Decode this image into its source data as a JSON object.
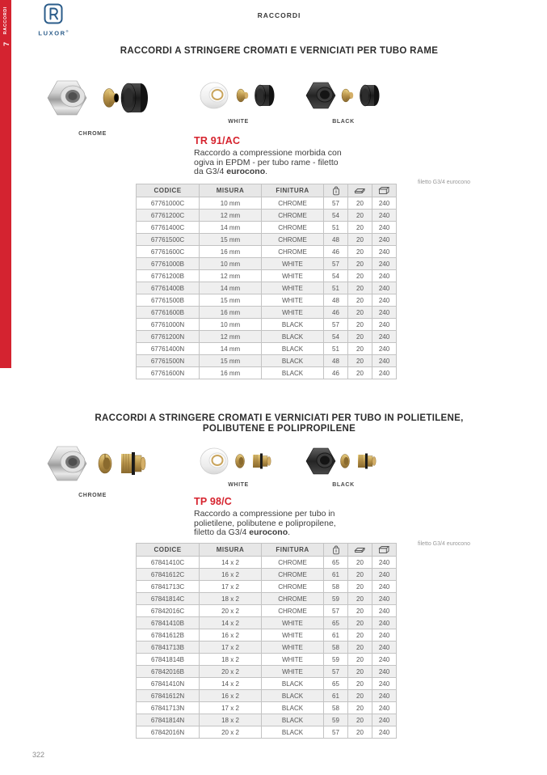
{
  "brand": {
    "name": "LUXOR",
    "registered": "®",
    "color": "#2b5c8a"
  },
  "sidebar": {
    "chapter_number": "7",
    "chapter_label": "RACCORDI",
    "color": "#d42330"
  },
  "page": {
    "header": "RACCORDI",
    "number": "322"
  },
  "table_headers": {
    "codice": "CODICE",
    "misura": "MISURA",
    "finitura": "FINITURA",
    "icon_columns": [
      "bag-icon",
      "pack-icon",
      "carton-icon"
    ]
  },
  "sections": [
    {
      "title_line1": "RACCORDI A STRINGERE CROMATI E VERNICIATI PER TUBO RAME",
      "title_line2": "",
      "photo_labels": {
        "chrome": "CHROME",
        "white": "WHITE",
        "black": "BLACK"
      },
      "product_code": "TR 91/AC",
      "description": {
        "line1": "Raccordo a compressione morbida con",
        "line2": "ogiva in EPDM - per tubo rame - filetto",
        "line3_pre": "da G3/4 ",
        "line3_bold": "eurocono",
        "line3_post": "."
      },
      "note": "filetto G3/4 eurocono",
      "table_rows": [
        [
          "67761000C",
          "10 mm",
          "CHROME",
          "57",
          "20",
          "240"
        ],
        [
          "67761200C",
          "12 mm",
          "CHROME",
          "54",
          "20",
          "240"
        ],
        [
          "67761400C",
          "14 mm",
          "CHROME",
          "51",
          "20",
          "240"
        ],
        [
          "67761500C",
          "15 mm",
          "CHROME",
          "48",
          "20",
          "240"
        ],
        [
          "67761600C",
          "16 mm",
          "CHROME",
          "46",
          "20",
          "240"
        ],
        [
          "67761000B",
          "10 mm",
          "WHITE",
          "57",
          "20",
          "240"
        ],
        [
          "67761200B",
          "12 mm",
          "WHITE",
          "54",
          "20",
          "240"
        ],
        [
          "67761400B",
          "14 mm",
          "WHITE",
          "51",
          "20",
          "240"
        ],
        [
          "67761500B",
          "15 mm",
          "WHITE",
          "48",
          "20",
          "240"
        ],
        [
          "67761600B",
          "16 mm",
          "WHITE",
          "46",
          "20",
          "240"
        ],
        [
          "67761000N",
          "10 mm",
          "BLACK",
          "57",
          "20",
          "240"
        ],
        [
          "67761200N",
          "12 mm",
          "BLACK",
          "54",
          "20",
          "240"
        ],
        [
          "67761400N",
          "14 mm",
          "BLACK",
          "51",
          "20",
          "240"
        ],
        [
          "67761500N",
          "15 mm",
          "BLACK",
          "48",
          "20",
          "240"
        ],
        [
          "67761600N",
          "16 mm",
          "BLACK",
          "46",
          "20",
          "240"
        ]
      ]
    },
    {
      "title_line1": "RACCORDI A STRINGERE CROMATI E VERNICIATI PER TUBO IN POLIETILENE,",
      "title_line2": "POLIBUTENE E POLIPROPILENE",
      "photo_labels": {
        "chrome": "CHROME",
        "white": "WHITE",
        "black": "BLACK"
      },
      "product_code": "TP 98/C",
      "description": {
        "line1": "Raccordo a compressione per tubo in",
        "line2": "polietilene, polibutene e polipropilene,",
        "line3_pre": "filetto da G3/4 ",
        "line3_bold": "eurocono",
        "line3_post": "."
      },
      "note": "filetto G3/4 eurocono",
      "table_rows": [
        [
          "67841410C",
          "14 x 2",
          "CHROME",
          "65",
          "20",
          "240"
        ],
        [
          "67841612C",
          "16 x 2",
          "CHROME",
          "61",
          "20",
          "240"
        ],
        [
          "67841713C",
          "17 x 2",
          "CHROME",
          "58",
          "20",
          "240"
        ],
        [
          "67841814C",
          "18 x 2",
          "CHROME",
          "59",
          "20",
          "240"
        ],
        [
          "67842016C",
          "20 x 2",
          "CHROME",
          "57",
          "20",
          "240"
        ],
        [
          "67841410B",
          "14 x 2",
          "WHITE",
          "65",
          "20",
          "240"
        ],
        [
          "67841612B",
          "16 x 2",
          "WHITE",
          "61",
          "20",
          "240"
        ],
        [
          "67841713B",
          "17 x 2",
          "WHITE",
          "58",
          "20",
          "240"
        ],
        [
          "67841814B",
          "18 x 2",
          "WHITE",
          "59",
          "20",
          "240"
        ],
        [
          "67842016B",
          "20 x 2",
          "WHITE",
          "57",
          "20",
          "240"
        ],
        [
          "67841410N",
          "14 x 2",
          "BLACK",
          "65",
          "20",
          "240"
        ],
        [
          "67841612N",
          "16 x 2",
          "BLACK",
          "61",
          "20",
          "240"
        ],
        [
          "67841713N",
          "17 x 2",
          "BLACK",
          "58",
          "20",
          "240"
        ],
        [
          "67841814N",
          "18 x 2",
          "BLACK",
          "59",
          "20",
          "240"
        ],
        [
          "67842016N",
          "20 x 2",
          "BLACK",
          "57",
          "20",
          "240"
        ]
      ]
    }
  ]
}
